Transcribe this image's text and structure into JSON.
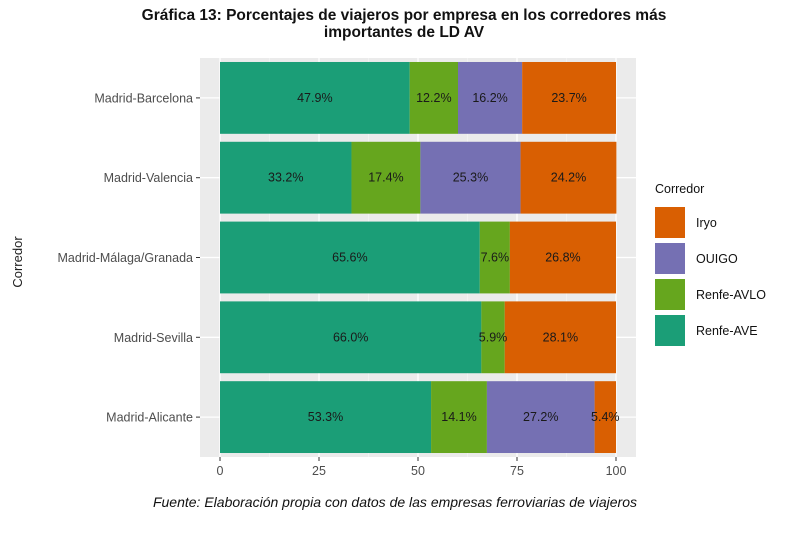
{
  "chart_data": {
    "type": "bar",
    "orientation": "horizontal",
    "stacked": true,
    "title_lines": [
      "Gráfica 13: Porcentajes de viajeros por empresa en los corredores más",
      "importantes de LD AV"
    ],
    "xlabel": "",
    "ylabel": "Corredor",
    "xlim": [
      0,
      100
    ],
    "x_ticks": [
      "0",
      "25",
      "50",
      "75",
      "100"
    ],
    "categories": [
      "Madrid-Barcelona",
      "Madrid-Valencia",
      "Madrid-Málaga/Granada",
      "Madrid-Sevilla",
      "Madrid-Alicante"
    ],
    "series": [
      {
        "name": "Renfe-AVE",
        "color": "#1b9e77",
        "values": [
          47.9,
          33.2,
          65.6,
          66.0,
          53.3
        ],
        "labels": [
          "47.9%",
          "33.2%",
          "65.6%",
          "66.0%",
          "53.3%"
        ]
      },
      {
        "name": "Renfe-AVLO",
        "color": "#66a61e",
        "values": [
          12.2,
          17.4,
          7.6,
          5.9,
          14.1
        ],
        "labels": [
          "12.2%",
          "17.4%",
          "7.6%",
          "5.9%",
          "14.1%"
        ]
      },
      {
        "name": "OUIGO",
        "color": "#7570b3",
        "values": [
          16.2,
          25.3,
          0,
          0,
          27.2
        ],
        "labels": [
          "16.2%",
          "25.3%",
          "",
          "",
          "27.2%"
        ]
      },
      {
        "name": "Iryo",
        "color": "#d95f02",
        "values": [
          23.7,
          24.2,
          26.8,
          28.1,
          5.4
        ],
        "labels": [
          "23.7%",
          "24.2%",
          "26.8%",
          "28.1%",
          "5.4%"
        ]
      }
    ],
    "legend": {
      "title": "Corredor",
      "placement": "right",
      "order": [
        "Iryo",
        "OUIGO",
        "Renfe-AVLO",
        "Renfe-AVE"
      ]
    },
    "grid": true,
    "panel_background": "#ebebeb",
    "source": "Fuente: Elaboración propia con datos de las empresas ferroviarias de viajeros"
  }
}
